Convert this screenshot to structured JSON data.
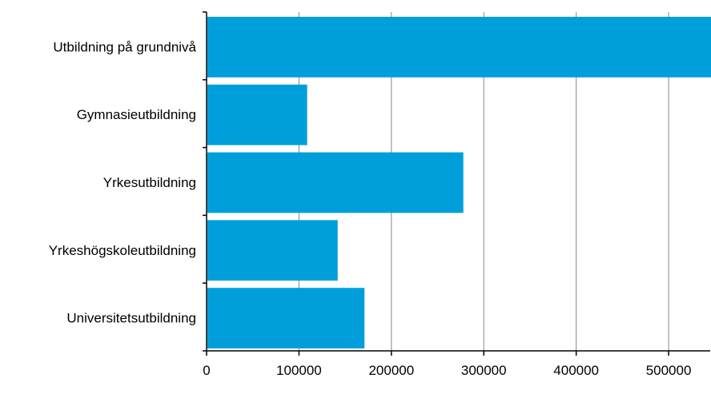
{
  "chart_data": {
    "type": "bar",
    "orientation": "horizontal",
    "title": "",
    "xlabel": "",
    "ylabel": "",
    "categories": [
      "Utbildning på grundnivå",
      "Gymnasieutbildning",
      "Yrkesutbildning",
      "Yrkeshögskoleutbildning",
      "Universitetsutbildning"
    ],
    "values": [
      545000,
      108000,
      277000,
      141000,
      170000
    ],
    "xlim": [
      0,
      545000
    ],
    "xticks": [
      0,
      100000,
      200000,
      300000,
      400000,
      500000
    ],
    "xtick_labels": [
      "0",
      "100000",
      "200000",
      "300000",
      "400000",
      "500000"
    ],
    "grid": "vertical",
    "legend": "none",
    "bar_color": "#009fdb",
    "axis_color": "#000000",
    "grid_color": "#888888"
  }
}
